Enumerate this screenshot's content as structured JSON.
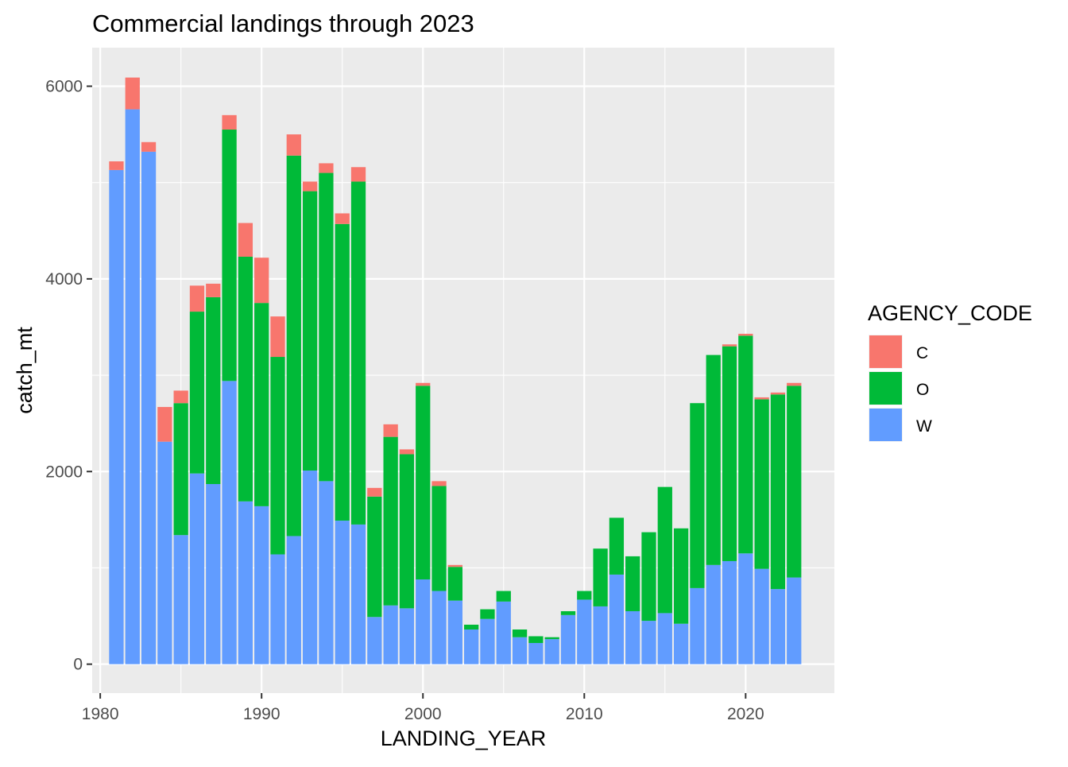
{
  "chart_data": {
    "type": "bar",
    "stacked": true,
    "title": "Commercial landings through 2023",
    "xlabel": "LANDING_YEAR",
    "ylabel": "catch_mt",
    "xlim": [
      1979.5,
      2025.5
    ],
    "ylim": [
      -300,
      6400
    ],
    "x_ticks": [
      1980,
      1990,
      2000,
      2010,
      2020
    ],
    "y_ticks": [
      0,
      2000,
      4000,
      6000
    ],
    "grid": true,
    "legend_position": "right",
    "legend_title": "AGENCY_CODE",
    "x": [
      1981,
      1982,
      1983,
      1984,
      1985,
      1986,
      1987,
      1988,
      1989,
      1990,
      1991,
      1992,
      1993,
      1994,
      1995,
      1996,
      1997,
      1998,
      1999,
      2000,
      2001,
      2002,
      2003,
      2004,
      2005,
      2006,
      2007,
      2008,
      2009,
      2010,
      2011,
      2012,
      2013,
      2014,
      2015,
      2016,
      2017,
      2018,
      2019,
      2020,
      2021,
      2022,
      2023
    ],
    "series": [
      {
        "name": "W",
        "color": "#619CFF",
        "values": [
          5130,
          5760,
          5320,
          2310,
          1340,
          1980,
          1870,
          2940,
          1690,
          1640,
          1140,
          1330,
          2010,
          1900,
          1490,
          1450,
          490,
          610,
          580,
          880,
          760,
          660,
          360,
          470,
          650,
          280,
          220,
          260,
          510,
          670,
          600,
          930,
          550,
          450,
          530,
          420,
          790,
          1030,
          1070,
          1150,
          990,
          780,
          900
        ]
      },
      {
        "name": "O",
        "color": "#00BA38",
        "values": [
          0,
          0,
          0,
          0,
          1370,
          1680,
          1940,
          2610,
          2540,
          2110,
          2050,
          3950,
          2900,
          3200,
          3080,
          3560,
          1250,
          1750,
          1600,
          2010,
          1090,
          350,
          50,
          100,
          110,
          80,
          70,
          20,
          40,
          90,
          600,
          590,
          570,
          920,
          1310,
          990,
          1920,
          2180,
          2230,
          2260,
          1760,
          2020,
          1990
        ]
      },
      {
        "name": "C",
        "color": "#F8766D",
        "values": [
          90,
          330,
          100,
          360,
          130,
          270,
          140,
          150,
          350,
          470,
          420,
          220,
          100,
          100,
          110,
          150,
          90,
          130,
          50,
          30,
          50,
          20,
          0,
          0,
          0,
          0,
          0,
          0,
          0,
          0,
          0,
          0,
          0,
          0,
          0,
          0,
          0,
          0,
          20,
          20,
          20,
          20,
          30
        ]
      }
    ]
  }
}
